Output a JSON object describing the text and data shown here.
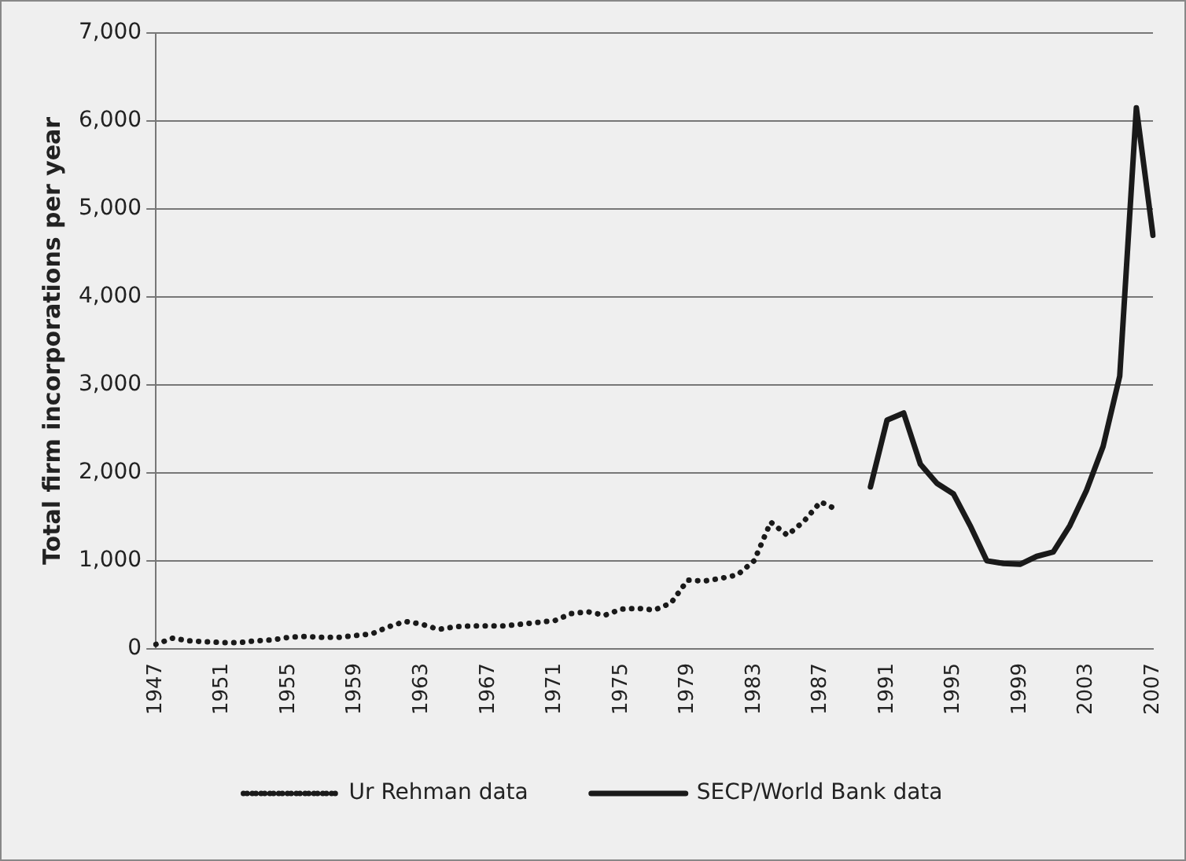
{
  "chart_data": {
    "type": "line",
    "ylabel": "Total firm incorporations per year",
    "categories": [
      "1947",
      null,
      null,
      null,
      "1951",
      null,
      null,
      null,
      "1955",
      null,
      null,
      null,
      "1959",
      null,
      null,
      null,
      "1963",
      null,
      null,
      null,
      "1967",
      null,
      null,
      null,
      "1971",
      null,
      null,
      null,
      "1975",
      null,
      null,
      null,
      "1979",
      null,
      null,
      null,
      "1983",
      null,
      null,
      null,
      "1987",
      null,
      null,
      null,
      "1991",
      null,
      null,
      null,
      "1995",
      null,
      null,
      null,
      "1999",
      null,
      null,
      null,
      "2003",
      null,
      null,
      null,
      "2007"
    ],
    "series": [
      {
        "name": "Ur Rehman data",
        "color": "#1a1a1a",
        "line_style": "dotted",
        "values": [
          50,
          120,
          90,
          80,
          70,
          70,
          90,
          100,
          130,
          140,
          130,
          130,
          150,
          170,
          250,
          310,
          280,
          220,
          250,
          260,
          260,
          260,
          280,
          300,
          320,
          400,
          420,
          380,
          450,
          460,
          440,
          520,
          780,
          770,
          800,
          840,
          1000,
          1440,
          1290,
          1450,
          1670,
          1580,
          null,
          null,
          null,
          null,
          null,
          null,
          null,
          null,
          null,
          null,
          null,
          null,
          null,
          null,
          null,
          null,
          null,
          null,
          null
        ]
      },
      {
        "name": "SECP/World Bank data",
        "color": "#1a1a1a",
        "line_style": "solid",
        "values": [
          null,
          null,
          null,
          null,
          null,
          null,
          null,
          null,
          null,
          null,
          null,
          null,
          null,
          null,
          null,
          null,
          null,
          null,
          null,
          null,
          null,
          null,
          null,
          null,
          null,
          null,
          null,
          null,
          null,
          null,
          null,
          null,
          null,
          null,
          null,
          null,
          null,
          null,
          null,
          null,
          null,
          null,
          null,
          1840,
          2600,
          2680,
          2100,
          1880,
          1760,
          1400,
          1000,
          970,
          960,
          1050,
          1100,
          1400,
          1800,
          2300,
          3100,
          6150,
          4700
        ]
      }
    ],
    "ylim": [
      0,
      7000
    ],
    "yticks": [
      {
        "value": 0,
        "label": "0"
      },
      {
        "value": 1000,
        "label": "1,000"
      },
      {
        "value": 2000,
        "label": "2,000"
      },
      {
        "value": 3000,
        "label": "3,000"
      },
      {
        "value": 4000,
        "label": "4,000"
      },
      {
        "value": 5000,
        "label": "5,000"
      },
      {
        "value": 6000,
        "label": "6,000"
      },
      {
        "value": 7000,
        "label": "7,000"
      }
    ],
    "grid": "y",
    "legend": "bottom",
    "marker": "none"
  }
}
